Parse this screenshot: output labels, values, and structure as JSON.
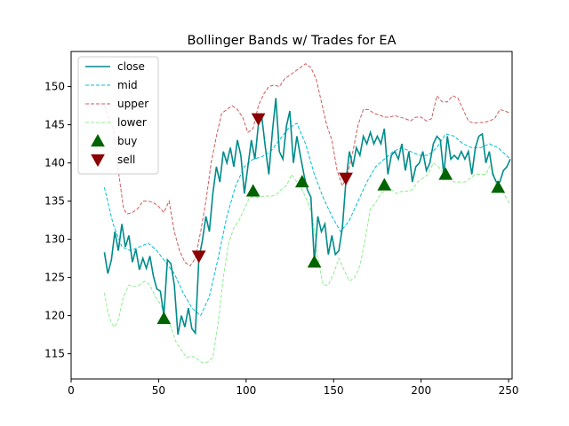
{
  "chart_data": {
    "type": "line",
    "title": "Bollinger Bands w/ Trades for EA",
    "xlabel": "",
    "ylabel": "",
    "xlim": [
      0,
      252
    ],
    "ylim": [
      111.7,
      154.6
    ],
    "xticks": [
      0,
      50,
      100,
      150,
      200,
      250
    ],
    "yticks": [
      115,
      120,
      125,
      130,
      135,
      140,
      145,
      150
    ],
    "grid": false,
    "legend": "upper-left",
    "series": [
      {
        "name": "close",
        "style": "solid",
        "color": "#008b8b",
        "x": [
          19,
          21,
          23,
          25,
          27,
          29,
          31,
          33,
          35,
          37,
          39,
          41,
          43,
          45,
          47,
          49,
          51,
          53,
          55,
          57,
          59,
          61,
          63,
          65,
          67,
          69,
          71,
          73,
          75,
          77,
          79,
          81,
          83,
          85,
          87,
          89,
          91,
          93,
          95,
          97,
          99,
          101,
          103,
          105,
          107,
          109,
          111,
          113,
          115,
          117,
          119,
          121,
          123,
          125,
          127,
          129,
          131,
          133,
          135,
          137,
          139,
          141,
          143,
          145,
          147,
          149,
          151,
          153,
          155,
          157,
          159,
          161,
          163,
          165,
          167,
          169,
          171,
          173,
          175,
          177,
          179,
          181,
          183,
          185,
          187,
          189,
          191,
          193,
          195,
          197,
          199,
          201,
          203,
          205,
          207,
          209,
          211,
          213,
          215,
          217,
          219,
          221,
          223,
          225,
          227,
          229,
          231,
          233,
          235,
          237,
          239,
          241,
          243,
          245,
          247,
          249,
          251
        ],
        "values": [
          128.3,
          125.5,
          127.3,
          131.0,
          128.5,
          132.0,
          129.0,
          130.5,
          127.0,
          128.7,
          126.0,
          127.5,
          126.2,
          127.8,
          125.2,
          123.5,
          123.2,
          120.0,
          127.3,
          126.8,
          124.0,
          117.5,
          120.0,
          118.5,
          121.0,
          118.3,
          117.7,
          127.5,
          129.8,
          133.0,
          131.0,
          136.0,
          139.5,
          137.5,
          141.5,
          140.0,
          142.0,
          139.5,
          143.0,
          141.0,
          136.0,
          139.5,
          143.0,
          140.5,
          145.0,
          146.0,
          142.0,
          138.5,
          144.0,
          148.5,
          141.5,
          140.5,
          144.8,
          146.8,
          140.0,
          143.5,
          141.0,
          138.5,
          136.5,
          135.5,
          127.0,
          133.0,
          131.0,
          132.0,
          128.0,
          130.5,
          128.0,
          128.5,
          131.5,
          137.5,
          141.5,
          139.5,
          142.0,
          141.0,
          143.5,
          142.5,
          144.0,
          142.5,
          143.5,
          142.5,
          144.5,
          138.5,
          141.0,
          141.5,
          140.5,
          142.5,
          139.0,
          141.5,
          137.5,
          139.5,
          140.0,
          141.5,
          139.0,
          140.0,
          142.5,
          143.5,
          143.0,
          138.5,
          143.5,
          140.5,
          141.0,
          140.5,
          141.5,
          140.5,
          141.5,
          138.5,
          142.0,
          143.5,
          143.8,
          140.0,
          141.5,
          138.5,
          137.5,
          137.5,
          139.0,
          139.5,
          140.5
        ]
      },
      {
        "name": "mid",
        "style": "dashed",
        "color": "#00bfd8",
        "x": [
          19,
          24,
          29,
          34,
          39,
          44,
          49,
          54,
          59,
          64,
          69,
          74,
          79,
          84,
          89,
          94,
          99,
          104,
          109,
          114,
          119,
          124,
          129,
          134,
          139,
          144,
          149,
          154,
          159,
          164,
          169,
          174,
          179,
          184,
          189,
          194,
          199,
          204,
          209,
          214,
          219,
          224,
          229,
          234,
          239,
          244,
          251
        ],
        "values": [
          136.8,
          132.0,
          129.0,
          128.5,
          129.0,
          129.5,
          128.5,
          127.0,
          125.5,
          123.0,
          121.0,
          120.0,
          122.5,
          127.5,
          133.0,
          137.0,
          139.5,
          140.5,
          140.8,
          141.5,
          143.0,
          144.5,
          145.2,
          142.5,
          138.5,
          135.5,
          133.0,
          131.0,
          132.5,
          135.0,
          137.5,
          139.5,
          140.5,
          141.5,
          142.0,
          141.5,
          141.0,
          141.0,
          142.0,
          143.8,
          143.5,
          142.5,
          142.0,
          142.0,
          142.5,
          142.0,
          140.5
        ]
      },
      {
        "name": "upper",
        "style": "dashed",
        "color": "#cd5c5c",
        "x": [
          19,
          24,
          27,
          30,
          32,
          35,
          38,
          41,
          44,
          47,
          50,
          53,
          56,
          59,
          62,
          65,
          68,
          71,
          74,
          77,
          80,
          83,
          86,
          89,
          92,
          95,
          98,
          101,
          104,
          107,
          110,
          113,
          116,
          119,
          122,
          125,
          128,
          131,
          134,
          137,
          140,
          143,
          146,
          149,
          152,
          155,
          158,
          161,
          164,
          167,
          170,
          173,
          176,
          179,
          182,
          185,
          188,
          191,
          194,
          197,
          200,
          203,
          206,
          209,
          212,
          215,
          218,
          221,
          224,
          227,
          230,
          233,
          236,
          239,
          242,
          245,
          248,
          251
        ],
        "values": [
          147.5,
          144.5,
          139.0,
          134.0,
          133.3,
          133.5,
          134.0,
          135.0,
          135.0,
          134.8,
          134.3,
          133.5,
          135.0,
          131.0,
          128.5,
          127.0,
          126.5,
          127.5,
          131.0,
          135.0,
          140.0,
          143.5,
          146.5,
          147.0,
          147.5,
          147.0,
          146.0,
          144.0,
          144.5,
          147.5,
          149.0,
          150.0,
          150.2,
          150.0,
          151.0,
          151.5,
          152.0,
          152.5,
          153.0,
          152.5,
          151.0,
          148.0,
          145.0,
          143.0,
          139.0,
          137.0,
          138.5,
          141.5,
          145.0,
          147.0,
          147.0,
          146.5,
          146.3,
          146.0,
          146.0,
          146.2,
          146.0,
          145.8,
          145.5,
          146.0,
          146.0,
          145.5,
          145.8,
          148.8,
          148.0,
          148.0,
          148.8,
          148.5,
          147.0,
          145.5,
          145.2,
          145.3,
          145.3,
          145.5,
          145.8,
          147.0,
          146.8,
          146.5
        ]
      },
      {
        "name": "lower",
        "style": "dashed",
        "color": "#90ee90",
        "x": [
          19,
          21,
          23,
          25,
          27,
          30,
          33,
          36,
          39,
          42,
          45,
          48,
          51,
          54,
          57,
          60,
          63,
          66,
          69,
          72,
          75,
          78,
          81,
          84,
          87,
          90,
          93,
          96,
          99,
          102,
          105,
          108,
          111,
          114,
          117,
          120,
          123,
          126,
          129,
          132,
          135,
          138,
          141,
          144,
          147,
          150,
          153,
          156,
          159,
          162,
          165,
          168,
          171,
          174,
          177,
          180,
          183,
          186,
          189,
          192,
          195,
          198,
          201,
          204,
          207,
          210,
          213,
          216,
          219,
          222,
          225,
          228,
          231,
          234,
          237,
          240,
          243,
          246,
          251
        ],
        "values": [
          123.0,
          120.5,
          119.0,
          118.5,
          119.5,
          122.5,
          124.0,
          123.8,
          124.0,
          124.5,
          124.0,
          122.5,
          121.5,
          120.0,
          118.5,
          116.5,
          115.5,
          114.5,
          114.7,
          114.3,
          113.8,
          113.9,
          114.5,
          119.0,
          125.0,
          129.5,
          131.5,
          132.5,
          134.0,
          135.5,
          135.5,
          135.5,
          135.7,
          135.6,
          135.8,
          136.5,
          137.0,
          138.5,
          137.5,
          136.5,
          135.0,
          133.0,
          127.5,
          124.0,
          124.0,
          125.5,
          127.5,
          126.0,
          124.5,
          125.0,
          126.5,
          130.0,
          134.0,
          134.8,
          136.0,
          136.5,
          136.5,
          136.0,
          136.3,
          136.3,
          136.5,
          137.5,
          138.0,
          138.5,
          140.0,
          139.5,
          138.5,
          138.0,
          137.5,
          137.5,
          137.5,
          138.0,
          138.5,
          138.5,
          138.5,
          140.0,
          137.0,
          136.5,
          134.5
        ]
      }
    ],
    "markers": [
      {
        "name": "buy",
        "shape": "triangle-up",
        "color": "#006400",
        "x": [
          53,
          104,
          132,
          139,
          179,
          214,
          244
        ],
        "values": [
          119.6,
          136.3,
          137.5,
          127.0,
          137.1,
          138.5,
          136.8
        ]
      },
      {
        "name": "sell",
        "shape": "triangle-down",
        "color": "#8b0000",
        "x": [
          73,
          107,
          157
        ],
        "values": [
          127.8,
          145.8,
          138.0
        ]
      }
    ]
  }
}
